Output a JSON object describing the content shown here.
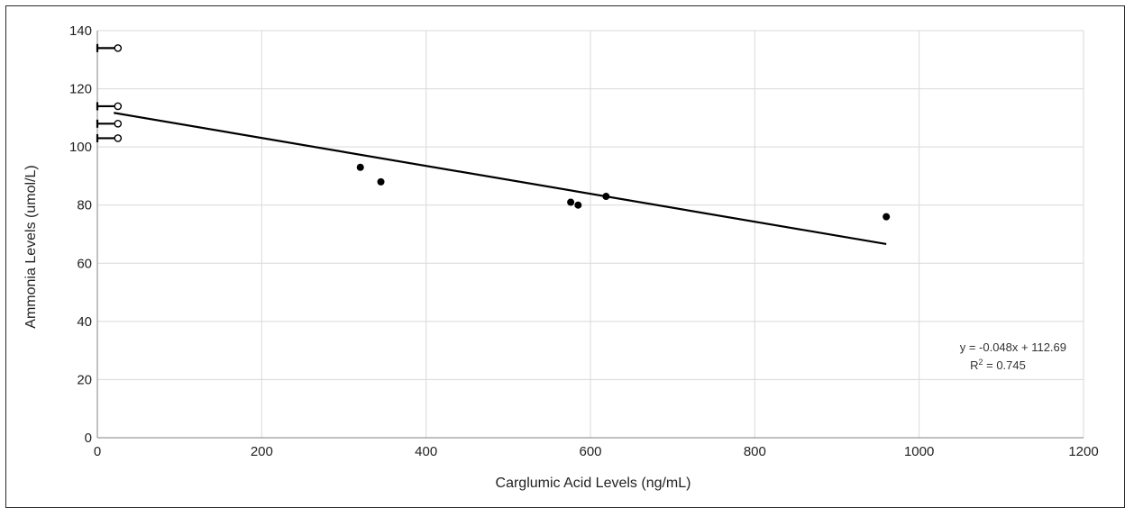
{
  "chart_data": {
    "type": "scatter",
    "title": "",
    "xlabel": "Carglumic Acid Levels (ng/mL)",
    "ylabel": "Ammonia Levels (umol/L)",
    "xlim": [
      0,
      1200
    ],
    "ylim": [
      0,
      140
    ],
    "xticks": [
      0,
      200,
      400,
      600,
      800,
      1000,
      1200
    ],
    "yticks": [
      0,
      20,
      40,
      60,
      80,
      100,
      120,
      140
    ],
    "grid": true,
    "series": [
      {
        "marker": "filled-circle",
        "color": "#000000",
        "points": [
          {
            "x": 320,
            "y": 93
          },
          {
            "x": 345,
            "y": 88
          },
          {
            "x": 576,
            "y": 81
          },
          {
            "x": 585,
            "y": 80
          },
          {
            "x": 619,
            "y": 83
          },
          {
            "x": 960,
            "y": 76
          }
        ]
      },
      {
        "marker": "open-circle-with-bar",
        "color": "#000000",
        "points": [
          {
            "x": 25,
            "y": 134
          },
          {
            "x": 25,
            "y": 114
          },
          {
            "x": 25,
            "y": 108
          },
          {
            "x": 25,
            "y": 103
          }
        ]
      }
    ],
    "trendline": {
      "slope": -0.048,
      "intercept": 112.69,
      "x_range": [
        20,
        960
      ],
      "equation": "y = -0.048x + 112.69",
      "r2_label": "R",
      "r2_sup": "2",
      "r2_value": " = 0.745"
    },
    "colors": {
      "grid": "#d9d9d9",
      "axis": "#222222",
      "marker": "#000000",
      "trendline": "#000000"
    }
  }
}
